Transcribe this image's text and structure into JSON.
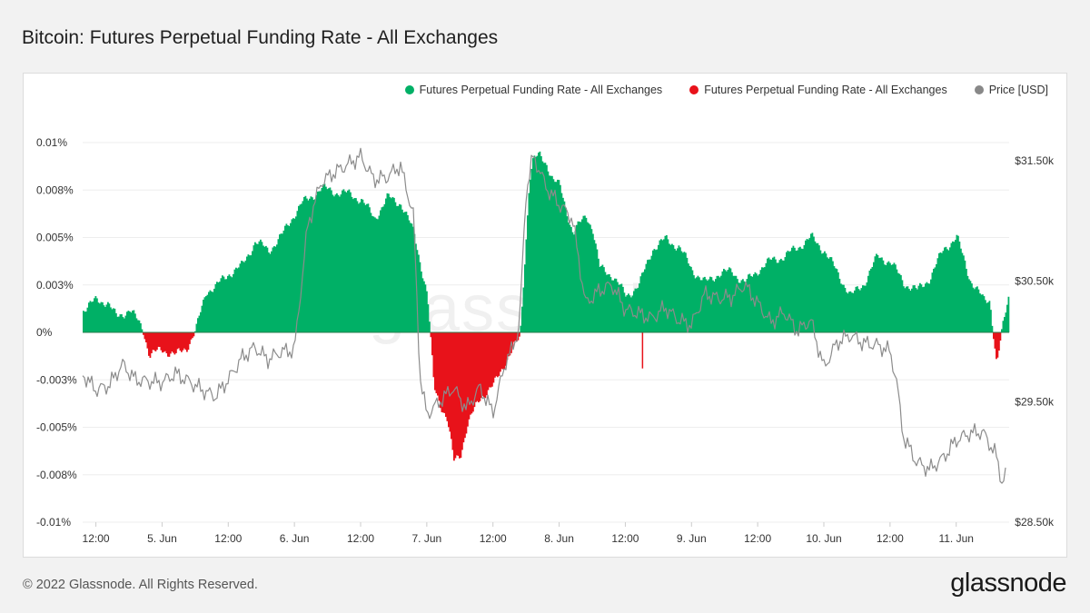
{
  "title": "Bitcoin: Futures Perpetual Funding Rate - All Exchanges",
  "footer": {
    "copyright": "© 2022 Glassnode. All Rights Reserved."
  },
  "brand": {
    "logo_text": "glassnode",
    "watermark_text": "glassnode"
  },
  "legend": [
    {
      "label": "Futures Perpetual Funding Rate - All Exchanges",
      "color": "#00b066"
    },
    {
      "label": "Futures Perpetual Funding Rate - All Exchanges",
      "color": "#e8121a"
    },
    {
      "label": "Price [USD]",
      "color": "#888888"
    }
  ],
  "chart_data": {
    "type": "area",
    "colors": {
      "positive": "#00b066",
      "negative": "#e8121a",
      "price": "#8c8c8c"
    },
    "x_ticks": [
      "12:00",
      "5. Jun",
      "12:00",
      "6. Jun",
      "12:00",
      "7. Jun",
      "12:00",
      "8. Jun",
      "12:00",
      "9. Jun",
      "12:00",
      "10. Jun",
      "12:00",
      "11. Jun"
    ],
    "x_tick_pos": [
      0,
      0.5,
      1,
      1.5,
      2,
      2.5,
      3,
      3.5,
      4,
      4.5,
      5,
      5.5,
      6,
      6.5
    ],
    "x_range": [
      -0.1,
      6.9
    ],
    "left_axis": {
      "ticks": [
        "0.01%",
        "0.008%",
        "0.005%",
        "0.003%",
        "0%",
        "-0.003%",
        "-0.005%",
        "-0.008%",
        "-0.01%"
      ],
      "values": [
        0.01,
        0.0075,
        0.005,
        0.0025,
        0,
        -0.0025,
        -0.005,
        -0.0075,
        -0.01
      ],
      "ylim": [
        -0.01,
        0.01
      ]
    },
    "right_axis": {
      "ticks": [
        "$31.50k",
        "$30.50k",
        "$29.50k",
        "$28.50k"
      ],
      "values": [
        31500,
        30500,
        29500,
        28500
      ],
      "ylim": [
        28500,
        31650
      ]
    },
    "funding_rate": {
      "name": "Futures Perpetual Funding Rate - All Exchanges",
      "x": [
        -0.1,
        0,
        0.08,
        0.15,
        0.25,
        0.35,
        0.4,
        0.5,
        0.6,
        0.68,
        0.75,
        0.83,
        0.9,
        1.0,
        1.1,
        1.2,
        1.3,
        1.4,
        1.5,
        1.55,
        1.6,
        1.7,
        1.8,
        1.9,
        2.0,
        2.1,
        2.2,
        2.3,
        2.4,
        2.5,
        2.55,
        2.6,
        2.65,
        2.7,
        2.75,
        2.8,
        2.9,
        3.0,
        3.1,
        3.15,
        3.2,
        3.25,
        3.27,
        3.3,
        3.35,
        3.4,
        3.45,
        3.5,
        3.6,
        3.7,
        3.75,
        3.8,
        3.9,
        4.0,
        4.1,
        4.2,
        4.3,
        4.4,
        4.5,
        4.6,
        4.7,
        4.8,
        4.9,
        5.0,
        5.1,
        5.2,
        5.3,
        5.4,
        5.5,
        5.6,
        5.7,
        5.8,
        5.9,
        6.0,
        6.1,
        6.2,
        6.3,
        6.4,
        6.5,
        6.6,
        6.7,
        6.75,
        6.8,
        6.85,
        6.9
      ],
      "y": [
        0.0012,
        0.0017,
        0.0016,
        0.0008,
        0.0012,
        0.0002,
        -0.0012,
        -0.0009,
        -0.0012,
        -0.0008,
        0.0001,
        0.0022,
        0.0024,
        0.0031,
        0.0035,
        0.0048,
        0.0043,
        0.0051,
        0.0063,
        0.0068,
        0.007,
        0.0076,
        0.0074,
        0.0073,
        0.007,
        0.006,
        0.0071,
        0.0068,
        0.0052,
        0.0019,
        -0.0029,
        -0.0038,
        -0.0046,
        -0.0068,
        -0.0064,
        -0.0049,
        -0.0034,
        -0.0028,
        -0.0014,
        -0.0008,
        -0.0003,
        0.0055,
        0.008,
        0.0091,
        0.0093,
        0.0089,
        0.008,
        0.0077,
        0.0052,
        0.0062,
        0.0054,
        0.0034,
        0.003,
        0.0019,
        0.0025,
        0.0044,
        0.0049,
        0.0045,
        0.0033,
        0.0026,
        0.0031,
        0.0032,
        0.0026,
        0.0033,
        0.0038,
        0.004,
        0.0045,
        0.005,
        0.0043,
        0.0031,
        0.0019,
        0.0026,
        0.004,
        0.0037,
        0.0026,
        0.0022,
        0.0029,
        0.0044,
        0.005,
        0.0028,
        0.0017,
        0.0017,
        -0.0017,
        0.0004,
        0.0022
      ],
      "note_spikes": [
        {
          "x": 4.13,
          "y": -0.0019
        }
      ]
    },
    "price": {
      "name": "Price [USD]",
      "x": [
        -0.1,
        0.0,
        0.1,
        0.2,
        0.3,
        0.4,
        0.5,
        0.6,
        0.7,
        0.8,
        0.9,
        1.0,
        1.1,
        1.2,
        1.3,
        1.4,
        1.5,
        1.6,
        1.7,
        1.8,
        1.9,
        2.0,
        2.1,
        2.2,
        2.3,
        2.4,
        2.45,
        2.5,
        2.6,
        2.7,
        2.8,
        2.9,
        3.0,
        3.1,
        3.15,
        3.2,
        3.25,
        3.3,
        3.35,
        3.4,
        3.5,
        3.6,
        3.7,
        3.8,
        3.9,
        4.0,
        4.1,
        4.2,
        4.3,
        4.4,
        4.5,
        4.6,
        4.7,
        4.8,
        4.9,
        5.0,
        5.1,
        5.2,
        5.3,
        5.4,
        5.5,
        5.6,
        5.7,
        5.8,
        5.9,
        6.0,
        6.05,
        6.1,
        6.2,
        6.3,
        6.4,
        6.5,
        6.6,
        6.7,
        6.8,
        6.85,
        6.9
      ],
      "y": [
        29720,
        29600,
        29650,
        29830,
        29700,
        29680,
        29660,
        29720,
        29650,
        29580,
        29530,
        29680,
        29870,
        29970,
        29870,
        29930,
        29930,
        30950,
        31300,
        31380,
        31450,
        31530,
        31350,
        31380,
        31480,
        31060,
        29700,
        29400,
        29500,
        29600,
        29420,
        29600,
        29400,
        29850,
        29950,
        30150,
        31250,
        31550,
        31450,
        31300,
        31150,
        31020,
        30300,
        30400,
        30450,
        30250,
        30230,
        30200,
        30300,
        30200,
        30150,
        30400,
        30350,
        30350,
        30450,
        30300,
        30150,
        30250,
        30100,
        30200,
        29800,
        30000,
        30050,
        29970,
        29950,
        29900,
        29650,
        29200,
        29000,
        28950,
        29050,
        29200,
        29250,
        29250,
        29050,
        28800,
        29000
      ]
    }
  }
}
